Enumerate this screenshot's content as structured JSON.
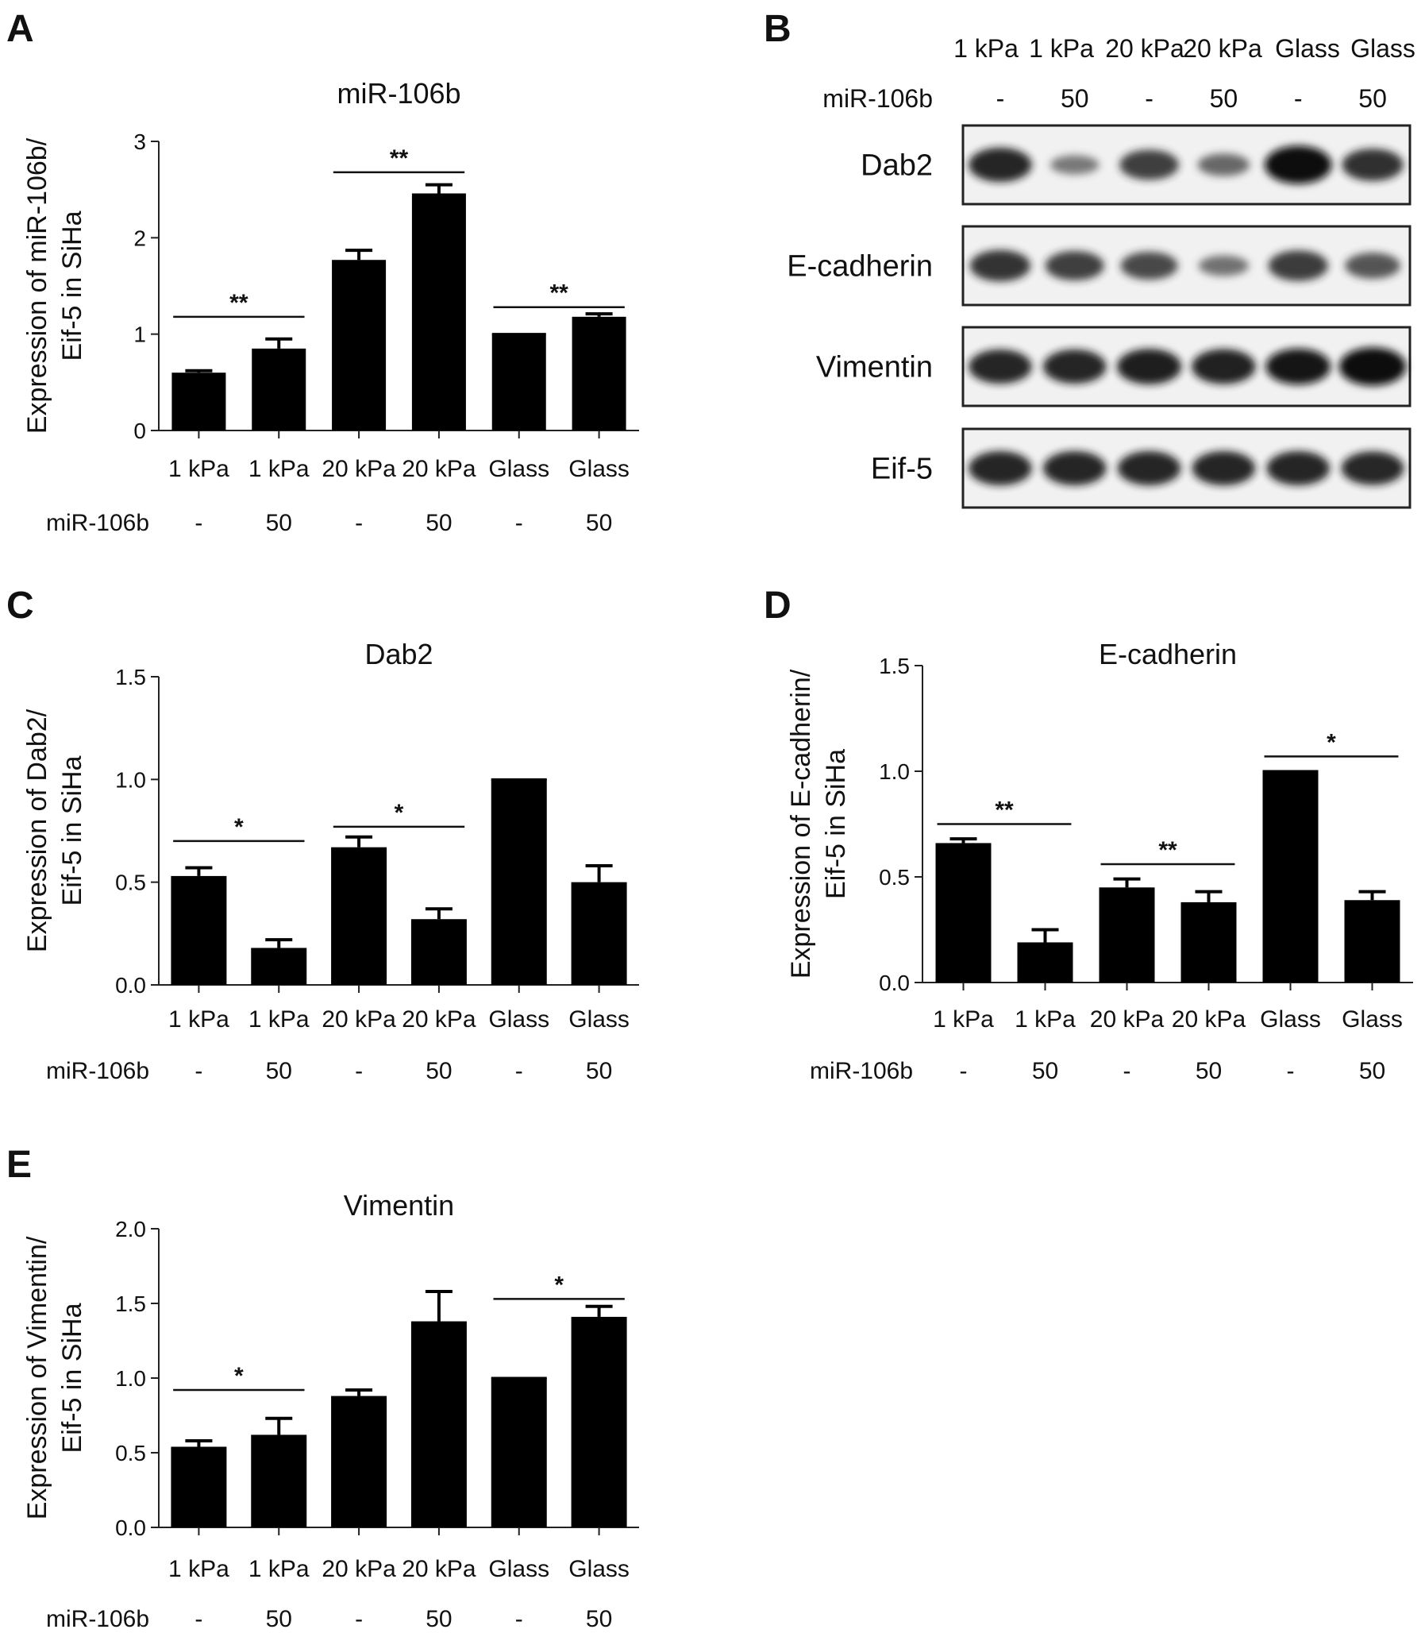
{
  "panel_labels": [
    "A",
    "B",
    "C",
    "D",
    "E"
  ],
  "chart_data": [
    {
      "panel": "A",
      "type": "bar",
      "title": "miR-106b",
      "ylabel": [
        "Expression of miR-106b/",
        "Eif-5 in SiHa"
      ],
      "categories": [
        "1 kPa",
        "1 kPa",
        "20 kPa",
        "20 kPa",
        "Glass",
        "Glass"
      ],
      "treatment_label": "miR-106b",
      "treatment": [
        "-",
        "50",
        "-",
        "50",
        "-",
        "50"
      ],
      "values": [
        0.6,
        0.85,
        1.77,
        2.46,
        1.0,
        1.18
      ],
      "errors": [
        0.02,
        0.1,
        0.1,
        0.09,
        0.0,
        0.03
      ],
      "ylim": [
        0,
        3
      ],
      "yticks": [
        "0",
        "1",
        "2",
        "3"
      ],
      "ytick_values": [
        0,
        1,
        2,
        3
      ],
      "significance": [
        {
          "from": 0,
          "to": 1,
          "label": "**",
          "y": 1.18
        },
        {
          "from": 2,
          "to": 3,
          "label": "**",
          "y": 2.68
        },
        {
          "from": 4,
          "to": 5,
          "label": "**",
          "y": 1.28
        }
      ]
    },
    {
      "panel": "C",
      "type": "bar",
      "title": "Dab2",
      "ylabel": [
        "Expression of Dab2/",
        "Eif-5 in SiHa"
      ],
      "categories": [
        "1 kPa",
        "1 kPa",
        "20 kPa",
        "20 kPa",
        "Glass",
        "Glass"
      ],
      "treatment_label": "miR-106b",
      "treatment": [
        "-",
        "50",
        "-",
        "50",
        "-",
        "50"
      ],
      "values": [
        0.53,
        0.18,
        0.67,
        0.32,
        1.0,
        0.5
      ],
      "errors": [
        0.04,
        0.04,
        0.05,
        0.05,
        0.0,
        0.08
      ],
      "ylim": [
        0,
        1.5
      ],
      "yticks": [
        "0.0",
        "0.5",
        "1.0",
        "1.5"
      ],
      "ytick_values": [
        0,
        0.5,
        1.0,
        1.5
      ],
      "significance": [
        {
          "from": 0,
          "to": 1,
          "label": "*",
          "y": 0.7
        },
        {
          "from": 2,
          "to": 3,
          "label": "*",
          "y": 0.77
        }
      ]
    },
    {
      "panel": "D",
      "type": "bar",
      "title": "E-cadherin",
      "ylabel": [
        "Expression of E-cadherin/",
        "Eif-5 in SiHa"
      ],
      "categories": [
        "1 kPa",
        "1 kPa",
        "20 kPa",
        "20 kPa",
        "Glass",
        "Glass"
      ],
      "treatment_label": "miR-106b",
      "treatment": [
        "-",
        "50",
        "-",
        "50",
        "-",
        "50"
      ],
      "values": [
        0.66,
        0.19,
        0.45,
        0.38,
        1.0,
        0.39
      ],
      "errors": [
        0.02,
        0.06,
        0.04,
        0.05,
        0.0,
        0.04
      ],
      "ylim": [
        0,
        1.5
      ],
      "yticks": [
        "0.0",
        "0.5",
        "1.0",
        "1.5"
      ],
      "ytick_values": [
        0,
        0.5,
        1.0,
        1.5
      ],
      "significance": [
        {
          "from": 0,
          "to": 1,
          "label": "**",
          "y": 0.75
        },
        {
          "from": 2,
          "to": 3,
          "label": "**",
          "y": 0.56
        },
        {
          "from": 4,
          "to": 5,
          "label": "*",
          "y": 1.07
        }
      ]
    },
    {
      "panel": "E",
      "type": "bar",
      "title": "Vimentin",
      "ylabel": [
        "Expression of Vimentin/",
        "Eif-5 in SiHa"
      ],
      "categories": [
        "1 kPa",
        "1 kPa",
        "20 kPa",
        "20 kPa",
        "Glass",
        "Glass"
      ],
      "treatment_label": "miR-106b",
      "treatment": [
        "-",
        "50",
        "-",
        "50",
        "-",
        "50"
      ],
      "values": [
        0.54,
        0.62,
        0.88,
        1.38,
        1.0,
        1.41
      ],
      "errors": [
        0.04,
        0.11,
        0.04,
        0.2,
        0.0,
        0.07
      ],
      "ylim": [
        0,
        2.0
      ],
      "yticks": [
        "0.0",
        "0.5",
        "1.0",
        "1.5",
        "2.0"
      ],
      "ytick_values": [
        0,
        0.5,
        1.0,
        1.5,
        2.0
      ],
      "significance": [
        {
          "from": 0,
          "to": 1,
          "label": "*",
          "y": 0.92
        },
        {
          "from": 4,
          "to": 5,
          "label": "*",
          "y": 1.53
        }
      ]
    }
  ],
  "western_blot": {
    "panel": "B",
    "lanes": [
      "1 kPa",
      "1 kPa",
      "20 kPa",
      "20 kPa",
      "Glass",
      "Glass"
    ],
    "treatment_label": "miR-106b",
    "treatment": [
      "-",
      "50",
      "-",
      "50",
      "-",
      "50"
    ],
    "rows": [
      {
        "label": "Dab2",
        "band_intensity": [
          0.85,
          0.3,
          0.7,
          0.42,
          1.0,
          0.78
        ]
      },
      {
        "label": "E-cadherin",
        "band_intensity": [
          0.75,
          0.68,
          0.62,
          0.35,
          0.72,
          0.55
        ]
      },
      {
        "label": "Vimentin",
        "band_intensity": [
          0.85,
          0.85,
          0.9,
          0.88,
          0.92,
          1.0
        ]
      },
      {
        "label": "Eif-5",
        "band_intensity": [
          0.85,
          0.85,
          0.85,
          0.85,
          0.85,
          0.83
        ]
      }
    ]
  }
}
